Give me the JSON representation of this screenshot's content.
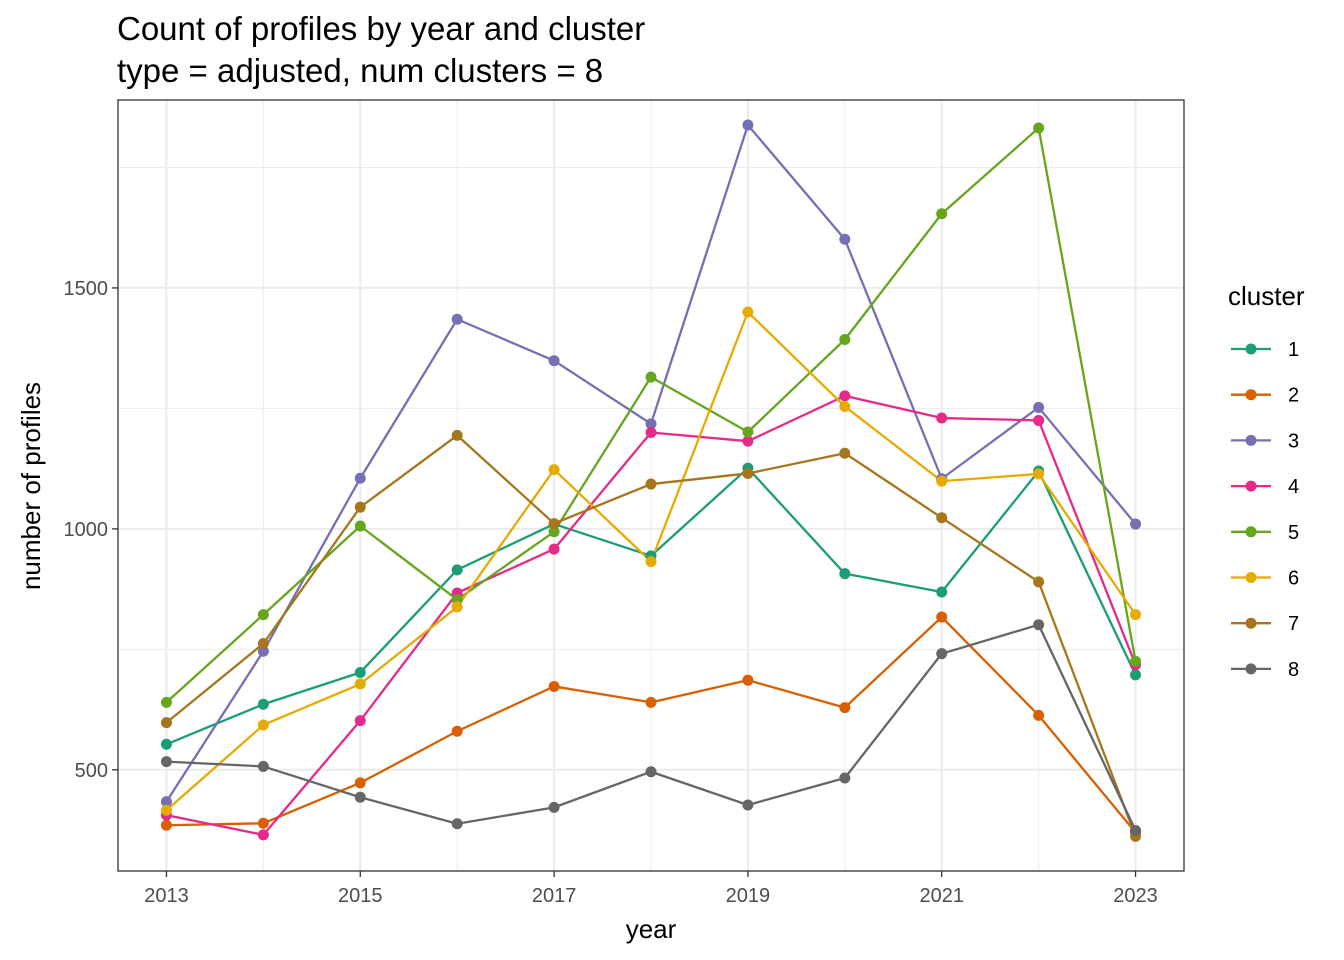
{
  "chart_data": {
    "type": "line",
    "title": "Count of profiles by year and cluster",
    "subtitle": "type = adjusted, num clusters = 8",
    "xlabel": "year",
    "ylabel": "number of profiles",
    "xlim": [
      2012.5,
      2023.5
    ],
    "ylim": [
      290,
      1890
    ],
    "grid": true,
    "x": [
      2013,
      2014,
      2015,
      2016,
      2017,
      2018,
      2019,
      2020,
      2021,
      2022,
      2023
    ],
    "x_ticks": [
      2013,
      2015,
      2017,
      2019,
      2021,
      2023
    ],
    "x_tick_labels": [
      "2013",
      "2015",
      "2017",
      "2019",
      "2021",
      "2023"
    ],
    "y_ticks": [
      500,
      1000,
      1500
    ],
    "y_tick_labels": [
      "500",
      "1000",
      "1500"
    ],
    "legend": {
      "title": "cluster",
      "position": "right"
    },
    "series": [
      {
        "name": "1",
        "color": "#1B9E77",
        "values": [
          553,
          636,
          702,
          915,
          1010,
          944,
          1126,
          907,
          869,
          1120,
          697
        ]
      },
      {
        "name": "2",
        "color": "#D95F02",
        "values": [
          385,
          389,
          473,
          580,
          673,
          640,
          686,
          629,
          817,
          613,
          370
        ]
      },
      {
        "name": "3",
        "color": "#7570B3",
        "values": [
          434,
          746,
          1105,
          1435,
          1349,
          1218,
          1838,
          1601,
          1104,
          1252,
          1010
        ]
      },
      {
        "name": "4",
        "color": "#E7298A",
        "values": [
          406,
          365,
          602,
          867,
          958,
          1200,
          1182,
          1276,
          1230,
          1225,
          718
        ]
      },
      {
        "name": "5",
        "color": "#66A61E",
        "values": [
          640,
          822,
          1006,
          853,
          994,
          1315,
          1201,
          1393,
          1654,
          1832,
          725
        ]
      },
      {
        "name": "6",
        "color": "#E6AB02",
        "values": [
          416,
          593,
          678,
          838,
          1123,
          932,
          1450,
          1254,
          1099,
          1114,
          822
        ]
      },
      {
        "name": "7",
        "color": "#A6761D",
        "values": [
          598,
          762,
          1045,
          1194,
          1011,
          1093,
          1115,
          1157,
          1023,
          890,
          362
        ]
      },
      {
        "name": "8",
        "color": "#666666",
        "values": [
          517,
          507,
          443,
          388,
          422,
          496,
          427,
          483,
          741,
          801,
          374
        ]
      }
    ]
  }
}
